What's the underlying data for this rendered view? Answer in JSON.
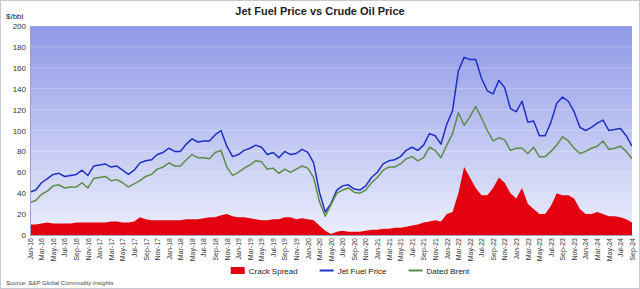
{
  "chart_data": {
    "type": "line",
    "title": "Jet Fuel Price vs Crude Oil Price",
    "y_label": "$/bbl",
    "source": "Source: S&P Global Commodity Insights",
    "categories": [
      "Jan-16",
      null,
      "Mar-16",
      null,
      "May-16",
      null,
      "Jul-16",
      null,
      "Sep-16",
      null,
      "Nov-16",
      null,
      "Jan-17",
      null,
      "Mar-17",
      null,
      "May-17",
      null,
      "Jul-17",
      null,
      "Sep-17",
      null,
      "Nov-17",
      null,
      "Jan-18",
      null,
      "Mar-18",
      null,
      "May-18",
      null,
      "Jul-18",
      null,
      "Sep-18",
      null,
      "Nov-18",
      null,
      "Jan-19",
      null,
      "Mar-19",
      null,
      "May-19",
      null,
      "Jul-19",
      null,
      "Sep-19",
      null,
      "Nov-19",
      null,
      "Jan-20",
      null,
      "Mar-20",
      null,
      "May-20",
      null,
      "Jul-20",
      null,
      "Sep-20",
      null,
      "Nov-20",
      null,
      "Jan-21",
      null,
      "Mar-21",
      null,
      "May-21",
      null,
      "Jul-21",
      null,
      "Sep-21",
      null,
      "Nov-21",
      null,
      "Jan-22",
      null,
      "Mar-22",
      null,
      "May-22",
      null,
      "Jul-22",
      null,
      "Sep-22",
      null,
      "Nov-22",
      null,
      "Jan-23",
      null,
      "Mar-23",
      null,
      "May-23",
      null,
      "Jul-23",
      null,
      "Sep-23",
      null,
      "Nov-23",
      null,
      "Jan-24",
      null,
      "Mar-24",
      null,
      "May-24",
      null,
      "Jul-24",
      null,
      "Sep-24"
    ],
    "series": [
      {
        "name": "Crack Spread",
        "type": "area",
        "color": "#e3000f",
        "values": [
          10,
          10,
          11,
          12,
          11,
          11,
          11,
          11,
          12,
          12,
          12,
          12,
          12,
          12,
          13,
          13,
          12,
          12,
          13,
          17,
          15,
          14,
          14,
          14,
          14,
          14,
          14,
          15,
          15,
          15,
          16,
          17,
          17,
          19,
          20,
          18,
          17,
          17,
          16,
          15,
          14,
          14,
          15,
          15,
          17,
          17,
          15,
          16,
          15,
          14,
          9,
          4,
          1,
          3,
          4,
          3,
          3,
          3,
          4,
          5,
          5,
          6,
          6,
          7,
          7,
          8,
          9,
          10,
          12,
          13,
          14,
          13,
          20,
          22,
          40,
          65,
          55,
          45,
          38,
          38,
          45,
          55,
          50,
          40,
          35,
          45,
          30,
          25,
          20,
          20,
          28,
          40,
          38,
          38,
          35,
          25,
          20,
          20,
          22,
          20,
          18,
          18,
          17,
          15,
          12
        ]
      },
      {
        "name": "Jet Fuel Price",
        "type": "line",
        "color": "#1c2fc7",
        "values": [
          41,
          43,
          50,
          54,
          58,
          59,
          56,
          57,
          58,
          62,
          57,
          66,
          67,
          68,
          65,
          66,
          62,
          58,
          62,
          69,
          71,
          72,
          77,
          79,
          83,
          80,
          80,
          87,
          92,
          89,
          90,
          90,
          96,
          100,
          85,
          75,
          77,
          81,
          83,
          86,
          84,
          77,
          79,
          74,
          80,
          77,
          78,
          82,
          79,
          69,
          41,
          22,
          30,
          43,
          47,
          48,
          44,
          43,
          47,
          55,
          60,
          68,
          71,
          72,
          75,
          81,
          84,
          81,
          86,
          97,
          95,
          87,
          106,
          119,
          157,
          170,
          168,
          168,
          150,
          138,
          135,
          148,
          141,
          121,
          118,
          128,
          108,
          109,
          95,
          95,
          108,
          126,
          132,
          128,
          118,
          103,
          100,
          103,
          107,
          110,
          100,
          101,
          102,
          95,
          85
        ]
      },
      {
        "name": "Dated Brent",
        "type": "line",
        "color": "#5b8c4a",
        "values": [
          31,
          33,
          39,
          42,
          47,
          48,
          45,
          46,
          46,
          50,
          45,
          54,
          55,
          56,
          52,
          53,
          50,
          46,
          49,
          52,
          56,
          58,
          63,
          65,
          69,
          66,
          66,
          72,
          77,
          74,
          74,
          73,
          79,
          81,
          65,
          57,
          60,
          64,
          67,
          71,
          70,
          63,
          64,
          59,
          63,
          60,
          63,
          66,
          64,
          55,
          32,
          18,
          29,
          40,
          43,
          45,
          41,
          40,
          43,
          50,
          55,
          62,
          65,
          65,
          68,
          73,
          75,
          71,
          74,
          84,
          81,
          74,
          86,
          97,
          117,
          105,
          113,
          123,
          112,
          100,
          90,
          93,
          91,
          81,
          83,
          83,
          78,
          84,
          75,
          75,
          80,
          86,
          94,
          90,
          83,
          78,
          80,
          83,
          85,
          90,
          82,
          83,
          85,
          80,
          73
        ]
      }
    ],
    "ylim": [
      0,
      200
    ],
    "yticks": [
      0,
      20,
      40,
      60,
      80,
      100,
      120,
      140,
      160,
      180,
      200
    ],
    "grid": true,
    "legend": "bottom"
  }
}
